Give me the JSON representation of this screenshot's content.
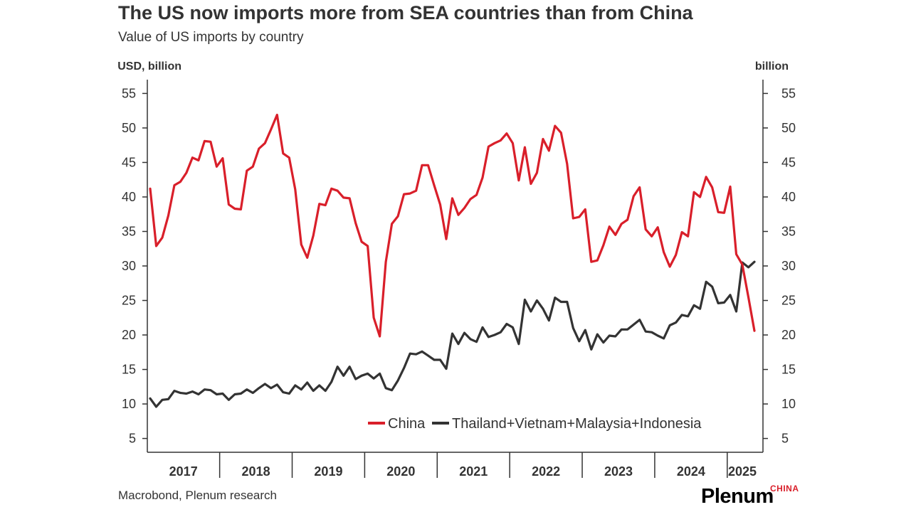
{
  "title": "The US now imports more from SEA countries than from China",
  "subtitle": "Value of US imports by country",
  "source": "Macrobond, Plenum research",
  "brand": {
    "name": "Plenum",
    "sub": "CHINA"
  },
  "chart_data": {
    "type": "line",
    "y_left_label": "USD, billion",
    "y_right_label": "billion",
    "ylim": [
      3,
      57
    ],
    "yticks": [
      5,
      10,
      15,
      20,
      25,
      30,
      35,
      40,
      45,
      50,
      55
    ],
    "x_start": "2017-01",
    "x_end": "2025-05",
    "years": [
      "2017",
      "2018",
      "2019",
      "2020",
      "2021",
      "2022",
      "2023",
      "2024",
      "2025"
    ],
    "grid": false,
    "legend_position": "bottom-right",
    "colors": {
      "China": "#d91f2a",
      "SEA": "#333333"
    },
    "series": [
      {
        "name": "China",
        "values": [
          41.2,
          32.9,
          34.1,
          37.3,
          41.7,
          42.2,
          43.5,
          45.7,
          45.3,
          48.1,
          48.0,
          44.4,
          45.6,
          38.9,
          38.3,
          38.2,
          43.8,
          44.4,
          47.0,
          47.8,
          49.8,
          51.9,
          46.3,
          45.7,
          41.1,
          33.1,
          31.2,
          34.4,
          39.0,
          38.8,
          41.2,
          40.9,
          39.9,
          39.8,
          36.2,
          33.5,
          32.9,
          22.5,
          19.8,
          30.6,
          36.1,
          37.2,
          40.4,
          40.5,
          40.9,
          44.6,
          44.6,
          41.7,
          38.9,
          33.9,
          39.8,
          37.4,
          38.4,
          39.7,
          40.3,
          42.8,
          47.3,
          47.8,
          48.2,
          49.2,
          47.8,
          42.4,
          47.2,
          41.9,
          43.5,
          48.4,
          46.7,
          50.3,
          49.3,
          44.8,
          36.9,
          37.1,
          38.2,
          30.6,
          30.8,
          33.0,
          35.7,
          34.5,
          36.1,
          36.7,
          40.1,
          41.4,
          35.3,
          34.3,
          35.6,
          32.0,
          29.9,
          31.6,
          34.9,
          34.3,
          40.7,
          40.0,
          42.9,
          41.4,
          37.8,
          37.7,
          41.5,
          31.7,
          30.2,
          25.5,
          20.6
        ]
      },
      {
        "name": "Thailand+Vietnam+Malaysia+Indonesia",
        "values": [
          10.8,
          9.6,
          10.6,
          10.7,
          11.9,
          11.6,
          11.5,
          11.8,
          11.4,
          12.1,
          12.0,
          11.4,
          11.5,
          10.6,
          11.4,
          11.5,
          12.1,
          11.6,
          12.3,
          12.9,
          12.3,
          12.8,
          11.7,
          11.5,
          12.7,
          12.1,
          13.1,
          11.9,
          12.7,
          11.9,
          13.2,
          15.4,
          14.1,
          15.4,
          13.6,
          14.1,
          14.4,
          13.7,
          14.4,
          12.3,
          12.0,
          13.4,
          15.2,
          17.3,
          17.2,
          17.6,
          17.0,
          16.4,
          16.4,
          15.1,
          20.2,
          18.7,
          20.3,
          19.4,
          19.0,
          21.1,
          19.7,
          20.0,
          20.4,
          21.6,
          21.1,
          18.7,
          25.1,
          23.4,
          25.0,
          23.8,
          22.1,
          25.4,
          24.8,
          24.8,
          21.0,
          19.1,
          20.7,
          17.9,
          20.1,
          18.9,
          19.9,
          19.8,
          20.8,
          20.8,
          21.5,
          22.2,
          20.5,
          20.4,
          19.9,
          19.5,
          21.4,
          21.8,
          22.9,
          22.7,
          24.3,
          23.8,
          27.7,
          27.0,
          24.6,
          24.7,
          25.8,
          23.4,
          30.5,
          29.8,
          30.6
        ]
      }
    ]
  }
}
